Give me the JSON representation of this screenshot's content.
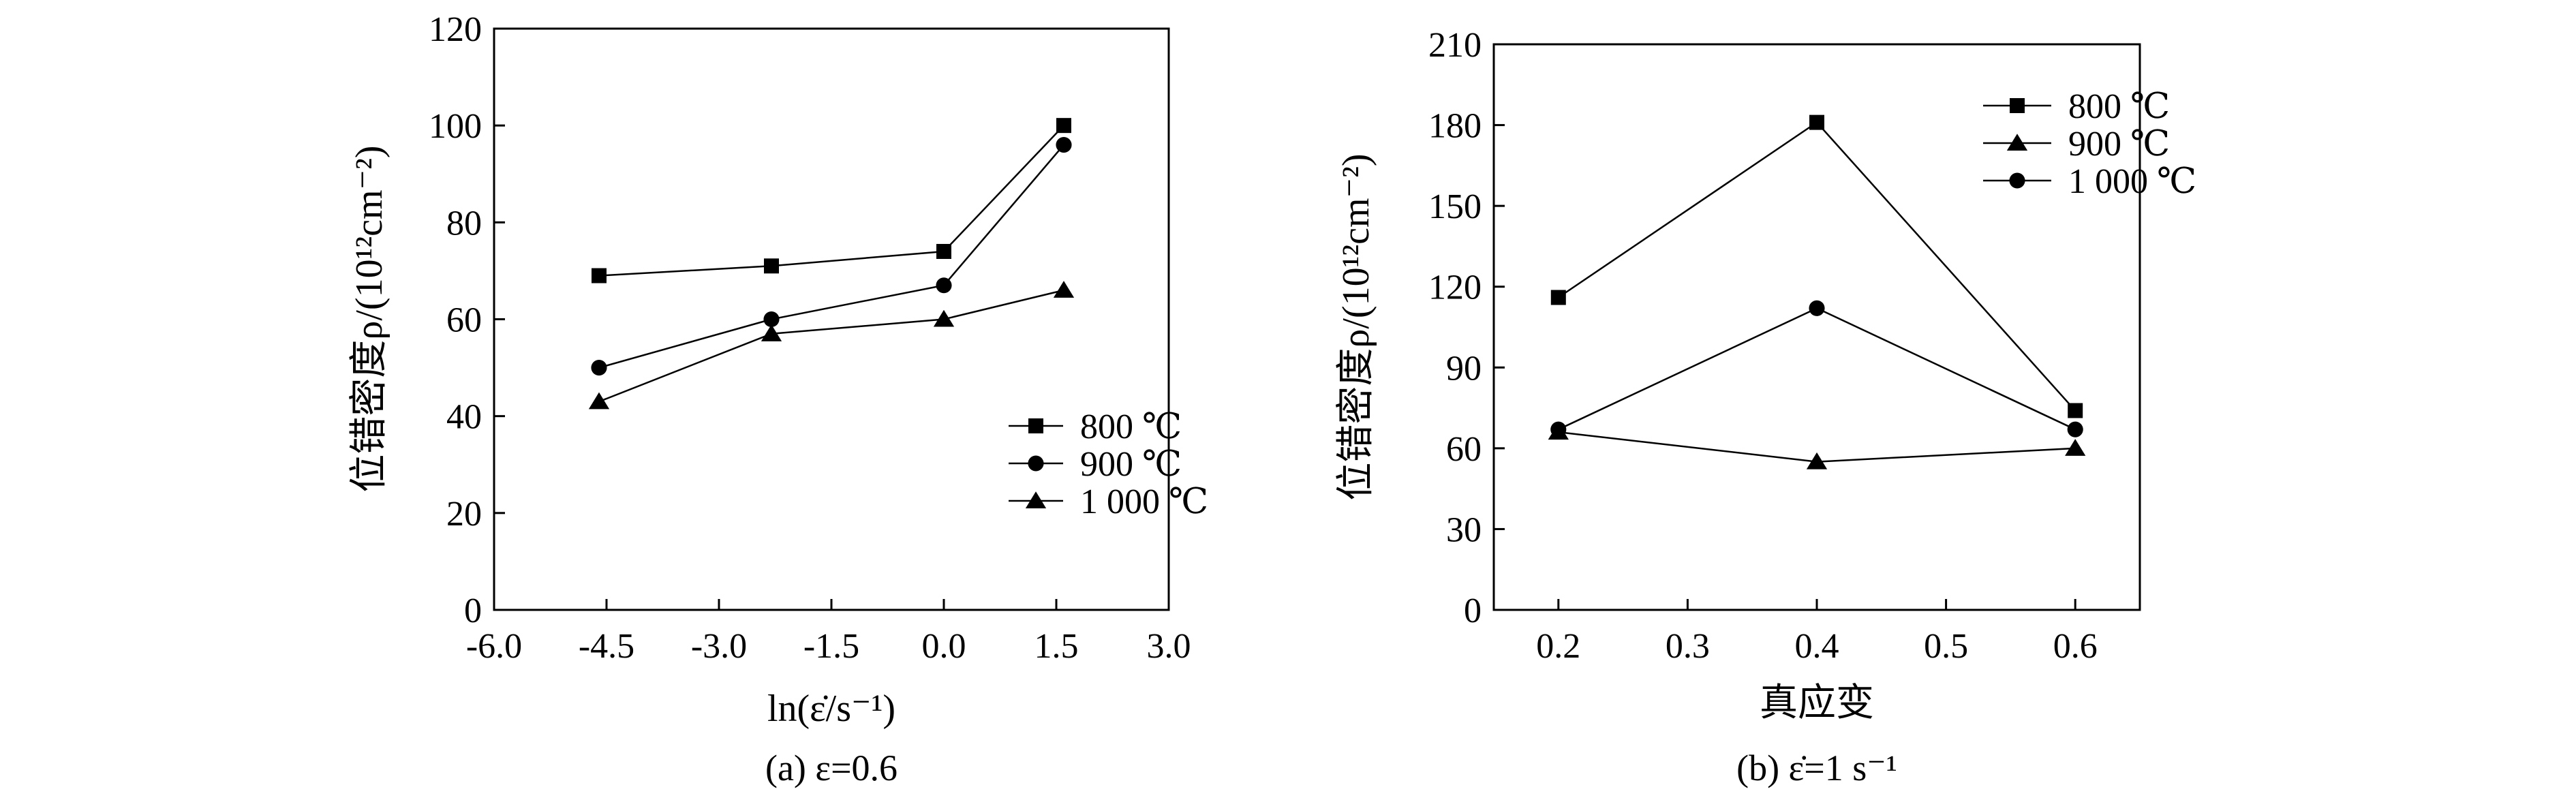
{
  "chart_data": [
    {
      "type": "line",
      "xlabel": "ln(ε̇/s⁻¹)",
      "ylabel": "位错密度ρ/(10¹²cm⁻²)",
      "caption": "(a) ε=0.6",
      "xlim": [
        -6.0,
        3.0
      ],
      "ylim": [
        0,
        120
      ],
      "xticks": [
        -6.0,
        -4.5,
        -3.0,
        -1.5,
        0.0,
        1.5,
        3.0
      ],
      "xtick_labels": [
        "-6.0",
        "-4.5",
        "-3.0",
        "-1.5",
        "0.0",
        "1.5",
        "3.0"
      ],
      "yticks": [
        0,
        20,
        40,
        60,
        80,
        100,
        120
      ],
      "ytick_labels": [
        "0",
        "20",
        "40",
        "60",
        "80",
        "100",
        "120"
      ],
      "grid": false,
      "legend_position": "right-center",
      "series": [
        {
          "name": "800 ℃",
          "marker": "square",
          "x": [
            -4.6,
            -2.3,
            0.0,
            1.6
          ],
          "values": [
            69,
            71,
            74,
            100
          ]
        },
        {
          "name": "900 ℃",
          "marker": "circle",
          "x": [
            -4.6,
            -2.3,
            0.0,
            1.6
          ],
          "values": [
            50,
            60,
            67,
            96
          ]
        },
        {
          "name": "1 000 ℃",
          "marker": "triangle",
          "x": [
            -4.6,
            -2.3,
            0.0,
            1.6
          ],
          "values": [
            43,
            57,
            60,
            66
          ]
        }
      ]
    },
    {
      "type": "line",
      "xlabel": "真应变",
      "ylabel": "位错密度ρ/(10¹²cm⁻²)",
      "caption": "(b) ε̇=1 s⁻¹",
      "xlim": [
        0.15,
        0.65
      ],
      "ylim": [
        0,
        210
      ],
      "xticks": [
        0.2,
        0.3,
        0.4,
        0.5,
        0.6
      ],
      "xtick_labels": [
        "0.2",
        "0.3",
        "0.4",
        "0.5",
        "0.6"
      ],
      "yticks": [
        0,
        30,
        60,
        90,
        120,
        150,
        180,
        210
      ],
      "ytick_labels": [
        "0",
        "30",
        "60",
        "90",
        "120",
        "150",
        "180",
        "210"
      ],
      "grid": false,
      "legend_position": "top-right",
      "series": [
        {
          "name": "800 ℃",
          "marker": "square",
          "x": [
            0.2,
            0.4,
            0.6
          ],
          "values": [
            116,
            181,
            74
          ]
        },
        {
          "name": "900 ℃",
          "marker": "triangle",
          "x": [
            0.2,
            0.4,
            0.6
          ],
          "values": [
            66,
            55,
            60
          ]
        },
        {
          "name": "1 000 ℃",
          "marker": "circle",
          "x": [
            0.2,
            0.4,
            0.6
          ],
          "values": [
            67,
            112,
            67
          ]
        }
      ]
    }
  ]
}
